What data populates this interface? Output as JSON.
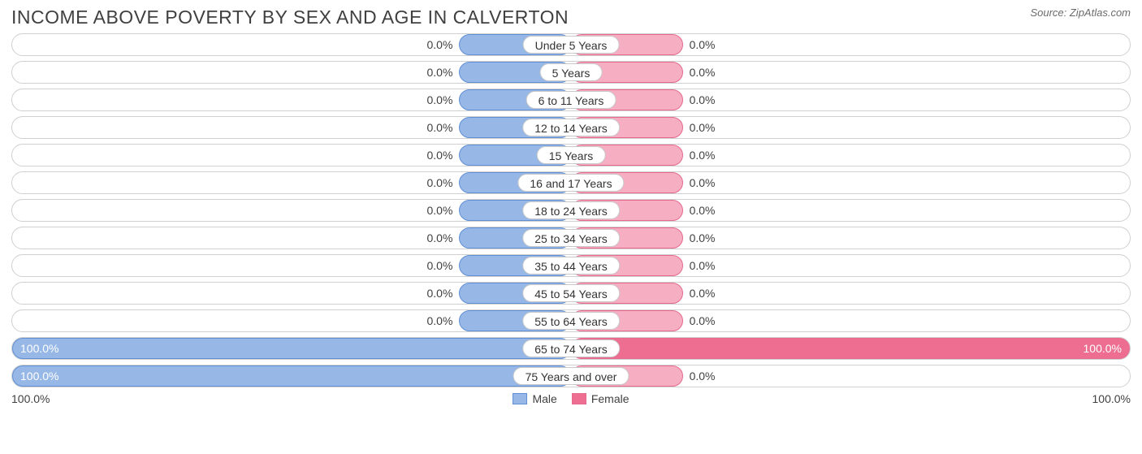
{
  "title": "INCOME ABOVE POVERTY BY SEX AND AGE IN CALVERTON",
  "source": "Source: ZipAtlas.com",
  "colors": {
    "title": "#404040",
    "source": "#6b6b6b",
    "row_border": "#d0d0d0",
    "male_fill": "#97b8e6",
    "male_border": "#5f8fd4",
    "female_fill_small": "#f5aec2",
    "female_fill_big": "#ed6e91",
    "female_border": "#e76a8d",
    "value_text": "#404040",
    "label_text": "#333333",
    "label_border": "#c8c8c8",
    "background": "#ffffff"
  },
  "chart": {
    "type": "diverging-bar",
    "min_bar_pct": 20,
    "rows": [
      {
        "label": "Under 5 Years",
        "male": 0.0,
        "female": 0.0
      },
      {
        "label": "5 Years",
        "male": 0.0,
        "female": 0.0
      },
      {
        "label": "6 to 11 Years",
        "male": 0.0,
        "female": 0.0
      },
      {
        "label": "12 to 14 Years",
        "male": 0.0,
        "female": 0.0
      },
      {
        "label": "15 Years",
        "male": 0.0,
        "female": 0.0
      },
      {
        "label": "16 and 17 Years",
        "male": 0.0,
        "female": 0.0
      },
      {
        "label": "18 to 24 Years",
        "male": 0.0,
        "female": 0.0
      },
      {
        "label": "25 to 34 Years",
        "male": 0.0,
        "female": 0.0
      },
      {
        "label": "35 to 44 Years",
        "male": 0.0,
        "female": 0.0
      },
      {
        "label": "45 to 54 Years",
        "male": 0.0,
        "female": 0.0
      },
      {
        "label": "55 to 64 Years",
        "male": 0.0,
        "female": 0.0
      },
      {
        "label": "65 to 74 Years",
        "male": 100.0,
        "female": 100.0
      },
      {
        "label": "75 Years and over",
        "male": 100.0,
        "female": 0.0
      }
    ]
  },
  "axis": {
    "left": "100.0%",
    "right": "100.0%"
  },
  "legend": {
    "male": "Male",
    "female": "Female"
  }
}
